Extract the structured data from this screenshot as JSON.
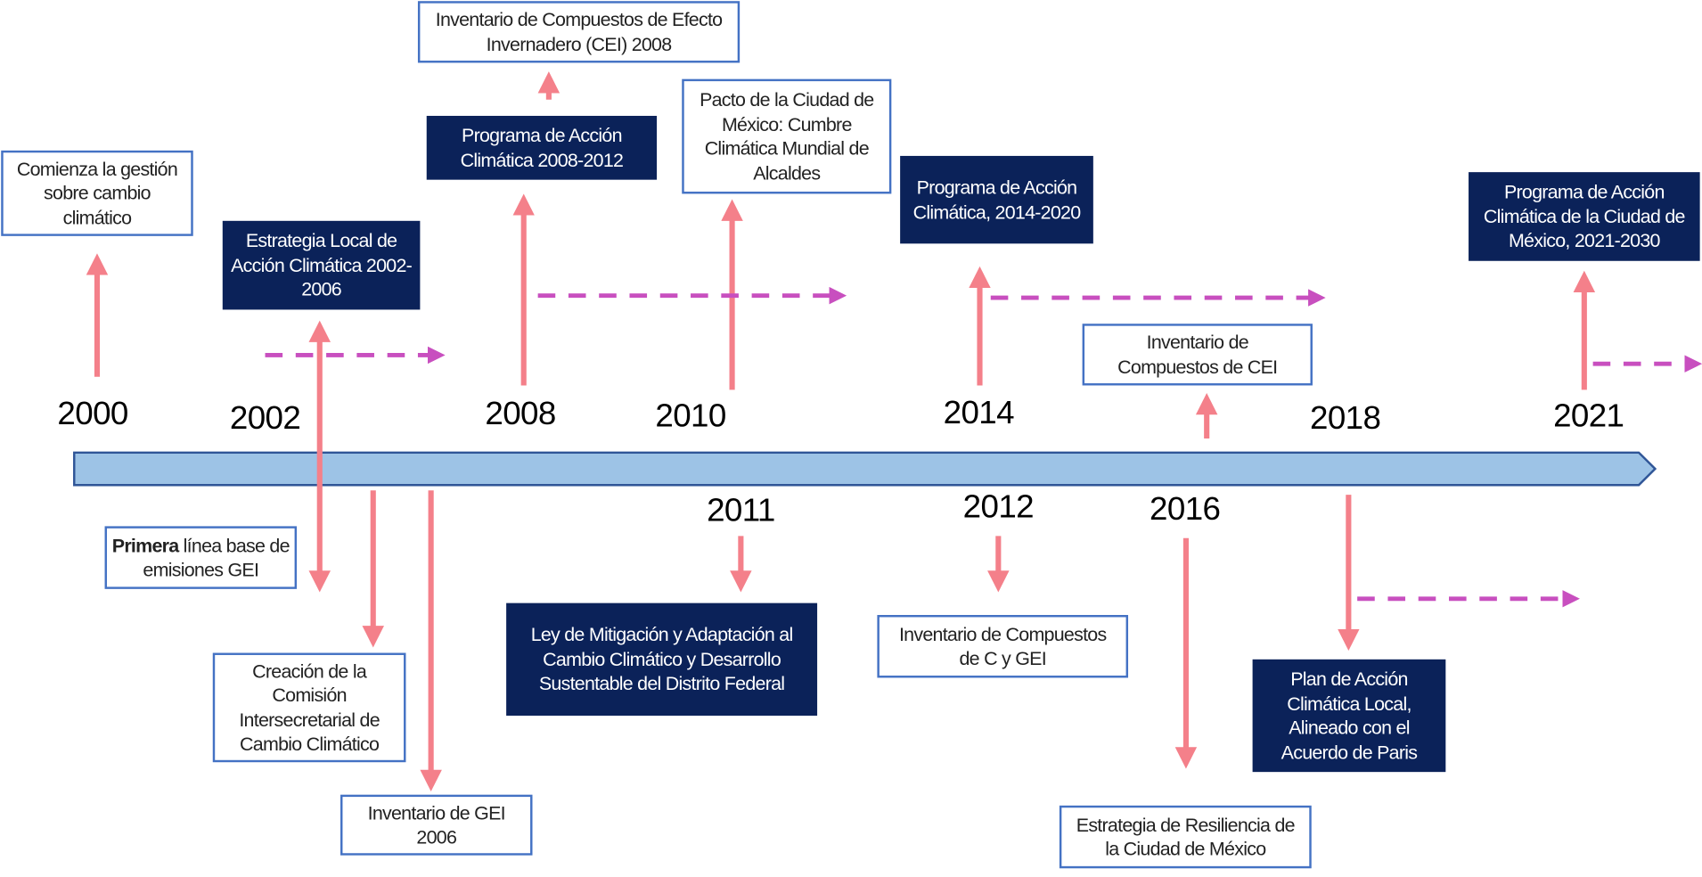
{
  "colors": {
    "timeline_fill": "#9dc3e6",
    "timeline_border": "#2f5597",
    "event_arrow": "#f4808a",
    "dashed_arrow": "#c84fbf",
    "dark_box": "#0b2259",
    "light_box_border": "#4472c4"
  },
  "years": {
    "y2000": "2000",
    "y2002": "2002",
    "y2008": "2008",
    "y2010": "2010",
    "y2014": "2014",
    "y2018": "2018",
    "y2021": "2021",
    "y2011": "2011",
    "y2012": "2012",
    "y2016": "2016"
  },
  "events": {
    "inventario_cei_2008": "Inventario de Compuestos de Efecto Invernadero (CEI) 2008",
    "comienza": "Comienza la gestión sobre cambio climático",
    "estrategia_local": "Estrategia Local de Acción Climática 2002-2006",
    "programa_2008": "Programa de Acción Climática 2008-2012",
    "pacto": "Pacto de la Ciudad de México: Cumbre Climática Mundial de Alcaldes",
    "programa_2014": "Programa de Acción Climática, 2014-2020",
    "programa_2021": "Programa de Acción Climática de la Ciudad de México, 2021-2030",
    "inventario_cei": "Inventario de Compuestos de CEI",
    "primera_bold": "Primera",
    "primera_rest": " línea base de emisiones GEI",
    "creacion": "Creación de la Comisión Intersecretarial de Cambio Climático",
    "inventario_gei_2006": "Inventario de GEI 2006",
    "ley": "Ley de Mitigación y Adaptación al Cambio Climático y Desarrollo Sustentable del Distrito Federal",
    "inventario_c_gei": "Inventario de Compuestos de C y GEI",
    "plan": "Plan de Acción Climática Local, Alineado con el Acuerdo de Paris",
    "resiliencia": "Estrategia de Resiliencia de la Ciudad de México"
  }
}
